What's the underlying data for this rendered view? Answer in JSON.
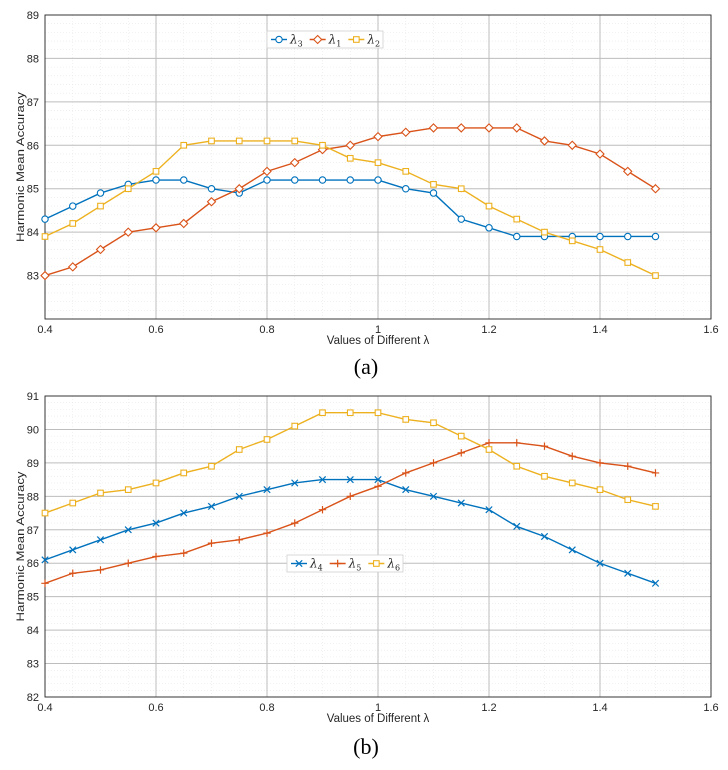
{
  "colors": {
    "blue": "#0072BD",
    "orange": "#D95319",
    "yellow": "#EDB120",
    "gridMajor": "#bdbdbd",
    "gridMinor": "#e6e6e6",
    "axis": "#262626"
  },
  "chart_data": [
    {
      "id": "a",
      "type": "line",
      "caption": "(a)",
      "xlabel": "Values of Different λ",
      "ylabel": "Harmonic Mean Accuracy",
      "xlim": [
        0.4,
        1.6
      ],
      "ylim": [
        82,
        89
      ],
      "xticks": [
        0.4,
        0.6,
        0.8,
        1.0,
        1.2,
        1.4,
        1.6
      ],
      "xticklabels": [
        "0.4",
        "0.6",
        "0.8",
        "1",
        "1.2",
        "1.4",
        "1.6"
      ],
      "yticks": [
        83,
        84,
        85,
        86,
        87,
        88,
        89
      ],
      "yticklabels": [
        "83",
        "84",
        "85",
        "86",
        "87",
        "88",
        "89"
      ],
      "grid": true,
      "legend_position": "top-center",
      "x": [
        0.4,
        0.45,
        0.5,
        0.55,
        0.6,
        0.65,
        0.7,
        0.75,
        0.8,
        0.85,
        0.9,
        0.95,
        1.0,
        1.05,
        1.1,
        1.15,
        1.2,
        1.25,
        1.3,
        1.35,
        1.4,
        1.45,
        1.5
      ],
      "series": [
        {
          "name": "λ3",
          "symbol": "λ",
          "sub": "3",
          "color": "#0072BD",
          "marker": "circle",
          "values": [
            84.3,
            84.6,
            84.9,
            85.1,
            85.2,
            85.2,
            85.0,
            84.9,
            85.2,
            85.2,
            85.2,
            85.2,
            85.2,
            85.0,
            84.9,
            84.3,
            84.1,
            83.9,
            83.9,
            83.9,
            83.9,
            83.9,
            83.9
          ]
        },
        {
          "name": "λ1",
          "symbol": "λ",
          "sub": "1",
          "color": "#D95319",
          "marker": "diamond",
          "values": [
            83.0,
            83.2,
            83.6,
            84.0,
            84.1,
            84.2,
            84.7,
            85.0,
            85.4,
            85.6,
            85.9,
            86.0,
            86.2,
            86.3,
            86.4,
            86.4,
            86.4,
            86.4,
            86.1,
            86.0,
            85.8,
            85.4,
            85.0
          ]
        },
        {
          "name": "λ2",
          "symbol": "λ",
          "sub": "2",
          "color": "#EDB120",
          "marker": "square",
          "values": [
            83.9,
            84.2,
            84.6,
            85.0,
            85.4,
            86.0,
            86.1,
            86.1,
            86.1,
            86.1,
            86.0,
            85.7,
            85.6,
            85.4,
            85.1,
            85.0,
            84.6,
            84.3,
            84.0,
            83.8,
            83.6,
            83.3,
            83.0
          ]
        }
      ]
    },
    {
      "id": "b",
      "type": "line",
      "caption": "(b)",
      "xlabel": "Values of Different λ",
      "ylabel": "Harmonic Mean Accuracy",
      "xlim": [
        0.4,
        1.6
      ],
      "ylim": [
        82,
        91
      ],
      "xticks": [
        0.4,
        0.6,
        0.8,
        1.0,
        1.2,
        1.4,
        1.6
      ],
      "xticklabels": [
        "0.4",
        "0.6",
        "0.8",
        "1",
        "1.2",
        "1.4",
        "1.6"
      ],
      "yticks": [
        82,
        83,
        84,
        85,
        86,
        87,
        88,
        89,
        90,
        91
      ],
      "yticklabels": [
        "82",
        "83",
        "84",
        "85",
        "86",
        "87",
        "88",
        "89",
        "90",
        "91"
      ],
      "grid": true,
      "legend_position": "center-left",
      "x": [
        0.4,
        0.45,
        0.5,
        0.55,
        0.6,
        0.65,
        0.7,
        0.75,
        0.8,
        0.85,
        0.9,
        0.95,
        1.0,
        1.05,
        1.1,
        1.15,
        1.2,
        1.25,
        1.3,
        1.35,
        1.4,
        1.45,
        1.5
      ],
      "series": [
        {
          "name": "λ4",
          "symbol": "λ",
          "sub": "4",
          "color": "#0072BD",
          "marker": "x",
          "values": [
            86.1,
            86.4,
            86.7,
            87.0,
            87.2,
            87.5,
            87.7,
            88.0,
            88.2,
            88.4,
            88.5,
            88.5,
            88.5,
            88.2,
            88.0,
            87.8,
            87.6,
            87.1,
            86.8,
            86.4,
            86.0,
            85.7,
            85.4
          ]
        },
        {
          "name": "λ5",
          "symbol": "λ",
          "sub": "5",
          "color": "#D95319",
          "marker": "plus",
          "values": [
            85.4,
            85.7,
            85.8,
            86.0,
            86.2,
            86.3,
            86.6,
            86.7,
            86.9,
            87.2,
            87.6,
            88.0,
            88.3,
            88.7,
            89.0,
            89.3,
            89.6,
            89.6,
            89.5,
            89.2,
            89.0,
            88.9,
            88.7
          ]
        },
        {
          "name": "λ6",
          "symbol": "λ",
          "sub": "6",
          "color": "#EDB120",
          "marker": "square",
          "values": [
            87.5,
            87.8,
            88.1,
            88.2,
            88.4,
            88.7,
            88.9,
            89.4,
            89.7,
            90.1,
            90.5,
            90.5,
            90.5,
            90.3,
            90.2,
            89.8,
            89.4,
            88.9,
            88.6,
            88.4,
            88.2,
            87.9,
            87.7
          ]
        }
      ]
    }
  ]
}
